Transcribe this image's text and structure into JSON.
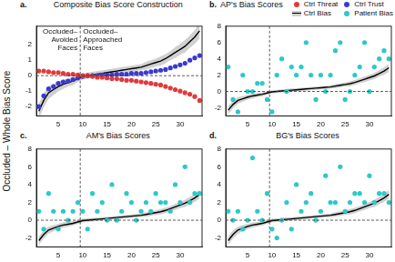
{
  "y_label": "Occluded – Whole Bias Score",
  "chart_data": [
    {
      "type": "scatter",
      "panel_label": "a.",
      "title": "Composite Bias Score Construction",
      "x": [
        1,
        2,
        3,
        4,
        5,
        6,
        7,
        8,
        9,
        10,
        11,
        12,
        13,
        14,
        15,
        16,
        17,
        18,
        19,
        20,
        21,
        22,
        23,
        24,
        25,
        26,
        27,
        28,
        29,
        30,
        31,
        32,
        33,
        34
      ],
      "xlim": [
        0.5,
        34.5
      ],
      "xticks": [
        5,
        10,
        15,
        20,
        25,
        30
      ],
      "ylim": [
        -2.6,
        3.2
      ],
      "yticks": [
        -2,
        -1,
        0,
        1,
        2
      ],
      "grid": false,
      "reference_lines": {
        "x": 9.5,
        "y": 0
      },
      "annotations": [
        "Occluded–Avoided Faces",
        "Occluded–Approached Faces"
      ],
      "series": [
        {
          "name": "Ctrl Threat",
          "type": "scatter",
          "marker": "circle",
          "color": "#e03a3a",
          "values": [
            0.3,
            0.3,
            0.25,
            0.2,
            0.2,
            0.15,
            0.1,
            0.1,
            0.05,
            0,
            0,
            -0.05,
            -0.1,
            -0.1,
            -0.15,
            -0.2,
            -0.2,
            -0.25,
            -0.3,
            -0.3,
            -0.35,
            -0.4,
            -0.45,
            -0.5,
            -0.55,
            -0.6,
            -0.7,
            -0.8,
            -0.9,
            -1.0,
            -1.1,
            -1.2,
            -1.35,
            -1.6
          ]
        },
        {
          "name": "Ctrl Trust",
          "type": "scatter",
          "marker": "circle",
          "color": "#3a3ad0",
          "values": [
            -2.0,
            -1.3,
            -0.85,
            -0.7,
            -0.5,
            -0.4,
            -0.35,
            -0.25,
            -0.15,
            -0.05,
            0,
            0,
            0,
            0.05,
            0.05,
            0.05,
            0.1,
            0.1,
            0.1,
            0.15,
            0.15,
            0.15,
            0.2,
            0.25,
            0.3,
            0.35,
            0.4,
            0.5,
            0.6,
            0.7,
            0.8,
            1.0,
            1.15,
            1.3
          ]
        },
        {
          "name": "Ctrl Bias",
          "type": "line",
          "line_style": "solid",
          "color": "#000000",
          "values": [
            -2.3,
            -1.6,
            -1.1,
            -0.9,
            -0.7,
            -0.55,
            -0.45,
            -0.35,
            -0.2,
            -0.05,
            0,
            0.05,
            0.1,
            0.15,
            0.2,
            0.25,
            0.3,
            0.35,
            0.4,
            0.45,
            0.5,
            0.55,
            0.65,
            0.75,
            0.85,
            0.95,
            1.1,
            1.3,
            1.5,
            1.7,
            1.9,
            2.2,
            2.5,
            2.9
          ],
          "error": [
            0.5,
            0.45,
            0.4,
            0.35,
            0.3,
            0.3,
            0.25,
            0.25,
            0.2,
            0.2,
            0.2,
            0.2,
            0.2,
            0.2,
            0.2,
            0.2,
            0.2,
            0.2,
            0.2,
            0.2,
            0.2,
            0.2,
            0.25,
            0.25,
            0.25,
            0.3,
            0.3,
            0.3,
            0.35,
            0.35,
            0.4,
            0.4,
            0.45,
            0.5
          ]
        }
      ]
    },
    {
      "type": "scatter",
      "panel_label": "b.",
      "title": "AP's Bias Scores",
      "legend": "upper right",
      "x": [
        1,
        2,
        3,
        4,
        5,
        6,
        7,
        8,
        9,
        10,
        11,
        12,
        13,
        14,
        15,
        16,
        17,
        18,
        19,
        20,
        21,
        22,
        23,
        24,
        25,
        26,
        27,
        28,
        29,
        30,
        31,
        32,
        33,
        34
      ],
      "xlim": [
        0.5,
        34.5
      ],
      "xticks": [
        5,
        10,
        15,
        20,
        25,
        30
      ],
      "ylim": [
        -3,
        8
      ],
      "yticks": [
        -2,
        0,
        2,
        4,
        6,
        8
      ],
      "grid": false,
      "reference_lines": {
        "x": 9.5,
        "y": 0
      },
      "series": [
        {
          "name": "Ctrl Bias",
          "type": "line",
          "line_style": "solid",
          "color": "#000000",
          "values": [
            -2.3,
            -1.6,
            -1.1,
            -0.9,
            -0.7,
            -0.55,
            -0.45,
            -0.35,
            -0.2,
            -0.05,
            0,
            0.05,
            0.1,
            0.15,
            0.2,
            0.25,
            0.3,
            0.35,
            0.4,
            0.45,
            0.5,
            0.55,
            0.65,
            0.75,
            0.85,
            0.95,
            1.1,
            1.3,
            1.5,
            1.7,
            1.9,
            2.2,
            2.5,
            2.9
          ],
          "error": [
            0.5,
            0.45,
            0.4,
            0.35,
            0.3,
            0.3,
            0.25,
            0.25,
            0.2,
            0.2,
            0.2,
            0.2,
            0.2,
            0.2,
            0.2,
            0.2,
            0.2,
            0.2,
            0.2,
            0.2,
            0.2,
            0.2,
            0.25,
            0.25,
            0.25,
            0.3,
            0.3,
            0.3,
            0.35,
            0.35,
            0.4,
            0.4,
            0.45,
            0.5
          ]
        },
        {
          "name": "Patient Bias",
          "type": "scatter",
          "marker": "circle",
          "color": "#2ec8c8",
          "values": [
            3,
            -1,
            -2.5,
            2,
            0,
            0,
            1,
            1,
            -1,
            -2.5,
            2,
            4,
            0,
            3,
            2,
            3,
            6,
            2,
            -1,
            2,
            0,
            2,
            5,
            6,
            -1,
            0,
            2,
            3,
            6,
            0,
            3,
            4,
            5,
            4
          ]
        }
      ]
    },
    {
      "type": "scatter",
      "panel_label": "c.",
      "title": "AM's Bias Scores",
      "x": [
        1,
        2,
        3,
        4,
        5,
        6,
        7,
        8,
        9,
        10,
        11,
        12,
        13,
        14,
        15,
        16,
        17,
        18,
        19,
        20,
        21,
        22,
        23,
        24,
        25,
        26,
        27,
        28,
        29,
        30,
        31,
        32,
        33,
        34
      ],
      "xlim": [
        0.5,
        34.5
      ],
      "xticks": [
        5,
        10,
        15,
        20,
        25,
        30
      ],
      "ylim": [
        -3,
        8
      ],
      "yticks": [
        -2,
        0,
        2,
        4,
        6,
        8
      ],
      "grid": false,
      "reference_lines": {
        "x": 9.5,
        "y": 0
      },
      "series": [
        {
          "name": "Ctrl Bias",
          "type": "line",
          "line_style": "solid",
          "color": "#000000",
          "values": [
            -2.3,
            -1.6,
            -1.1,
            -0.9,
            -0.7,
            -0.55,
            -0.45,
            -0.35,
            -0.2,
            -0.05,
            0,
            0.05,
            0.1,
            0.15,
            0.2,
            0.25,
            0.3,
            0.35,
            0.4,
            0.45,
            0.5,
            0.55,
            0.65,
            0.75,
            0.85,
            0.95,
            1.1,
            1.3,
            1.5,
            1.7,
            1.9,
            2.2,
            2.5,
            2.9
          ],
          "error": [
            0.5,
            0.45,
            0.4,
            0.35,
            0.3,
            0.3,
            0.25,
            0.25,
            0.2,
            0.2,
            0.2,
            0.2,
            0.2,
            0.2,
            0.2,
            0.2,
            0.2,
            0.2,
            0.2,
            0.2,
            0.2,
            0.2,
            0.25,
            0.25,
            0.25,
            0.3,
            0.3,
            0.3,
            0.35,
            0.35,
            0.4,
            0.4,
            0.45,
            0.5
          ]
        },
        {
          "name": "Patient Bias",
          "type": "scatter",
          "marker": "circle",
          "color": "#2ec8c8",
          "values": [
            1,
            -1,
            3,
            1,
            -1,
            1,
            0,
            1,
            2,
            1,
            -1,
            3,
            1,
            2,
            0,
            4,
            0,
            1,
            3,
            2,
            0,
            1,
            2,
            1,
            3,
            2,
            2,
            1,
            4,
            2,
            6,
            2,
            3,
            3
          ]
        }
      ]
    },
    {
      "type": "scatter",
      "panel_label": "d.",
      "title": "BG's Bias Scores",
      "x": [
        1,
        2,
        3,
        4,
        5,
        6,
        7,
        8,
        9,
        10,
        11,
        12,
        13,
        14,
        15,
        16,
        17,
        18,
        19,
        20,
        21,
        22,
        23,
        24,
        25,
        26,
        27,
        28,
        29,
        30,
        31,
        32,
        33,
        34
      ],
      "xlim": [
        0.5,
        34.5
      ],
      "xticks": [
        5,
        10,
        15,
        20,
        25,
        30
      ],
      "ylim": [
        -3,
        8
      ],
      "yticks": [
        -2,
        0,
        2,
        4,
        6,
        8
      ],
      "grid": false,
      "reference_lines": {
        "x": 9.5,
        "y": 0
      },
      "series": [
        {
          "name": "Ctrl Bias",
          "type": "line",
          "line_style": "solid",
          "color": "#000000",
          "values": [
            -2.3,
            -1.6,
            -1.1,
            -0.9,
            -0.7,
            -0.55,
            -0.45,
            -0.35,
            -0.2,
            -0.05,
            0,
            0.05,
            0.1,
            0.15,
            0.2,
            0.25,
            0.3,
            0.35,
            0.4,
            0.45,
            0.5,
            0.55,
            0.65,
            0.75,
            0.85,
            0.95,
            1.1,
            1.3,
            1.5,
            1.7,
            1.9,
            2.2,
            2.5,
            2.9
          ],
          "error": [
            0.5,
            0.45,
            0.4,
            0.35,
            0.3,
            0.3,
            0.25,
            0.25,
            0.2,
            0.2,
            0.2,
            0.2,
            0.2,
            0.2,
            0.2,
            0.2,
            0.2,
            0.2,
            0.2,
            0.2,
            0.2,
            0.2,
            0.25,
            0.25,
            0.25,
            0.3,
            0.3,
            0.3,
            0.35,
            0.35,
            0.4,
            0.4,
            0.45,
            0.5
          ]
        },
        {
          "name": "Patient Bias",
          "type": "scatter",
          "marker": "circle",
          "color": "#2ec8c8",
          "values": [
            1,
            0,
            1,
            -1,
            0,
            7,
            1,
            0,
            3,
            -1,
            -2,
            0,
            2,
            -1,
            4,
            1,
            2,
            3,
            0,
            1,
            5,
            2,
            2,
            6,
            1,
            2,
            3,
            3,
            2,
            5,
            2,
            3,
            3,
            2
          ]
        }
      ]
    }
  ]
}
